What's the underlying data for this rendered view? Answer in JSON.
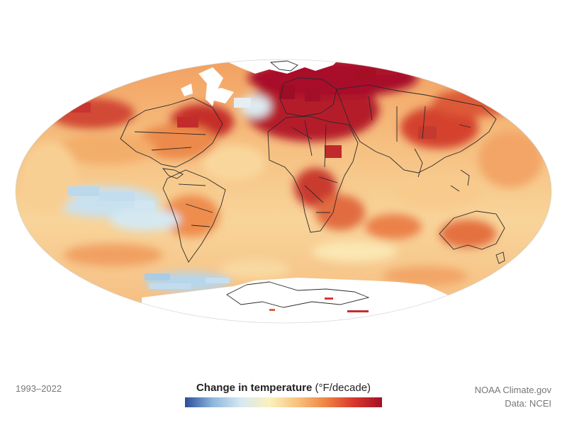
{
  "map": {
    "projection": "mollweide",
    "layer": "change in surface temperature per decade"
  },
  "footer": {
    "period": "1993–2022",
    "legend_title": "Change in temperature",
    "legend_units": "(°F/decade)",
    "credit": "NOAA Climate.gov",
    "source": "Data: NCEI"
  },
  "legend": {
    "colors": [
      "#2b4d9b",
      "#8fb8dd",
      "#d6e9f2",
      "#fbf1bd",
      "#f7c27d",
      "#ef8443",
      "#d8372d",
      "#a50f26"
    ]
  },
  "palette": {
    "ocean_warm": "#f6c081",
    "ocean_light": "#f9dca0",
    "cool": "#bcd9ec",
    "hot": "#d6402f",
    "hottest": "#a8102a",
    "no_data": "#ffffff",
    "borders": "#2a2a2a"
  }
}
